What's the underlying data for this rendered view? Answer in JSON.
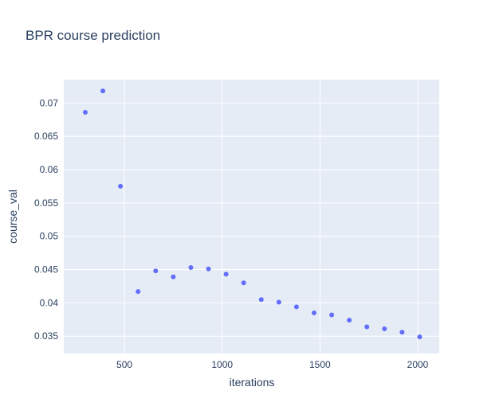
{
  "chart_data": {
    "type": "scatter",
    "title": "BPR course prediction",
    "xlabel": "iterations",
    "ylabel": "course_val",
    "xlim": [
      190,
      2110
    ],
    "ylim": [
      0.0324,
      0.0735
    ],
    "xticks": [
      500,
      1000,
      1500,
      2000
    ],
    "xtick_labels": [
      "500",
      "1000",
      "1500",
      "2000"
    ],
    "yticks": [
      0.035,
      0.04,
      0.045,
      0.05,
      0.055,
      0.06,
      0.065,
      0.07
    ],
    "ytick_labels": [
      "0.035",
      "0.04",
      "0.045",
      "0.05",
      "0.055",
      "0.06",
      "0.065",
      "0.07"
    ],
    "grid": true,
    "background_color": "#e5ecf6",
    "grid_color": "#ffffff",
    "marker_color": "#636efa",
    "series": [
      {
        "x": [
          300,
          390,
          480,
          570,
          660,
          750,
          840,
          930,
          1020,
          1110,
          1200,
          1290,
          1380,
          1470,
          1560,
          1650,
          1740,
          1830,
          1920,
          2010
        ],
        "y": [
          0.0686,
          0.0718,
          0.0575,
          0.0417,
          0.0448,
          0.0439,
          0.0453,
          0.0451,
          0.0443,
          0.043,
          0.0405,
          0.0401,
          0.0394,
          0.0385,
          0.0382,
          0.0374,
          0.0364,
          0.0361,
          0.0356,
          0.0349
        ]
      }
    ]
  }
}
